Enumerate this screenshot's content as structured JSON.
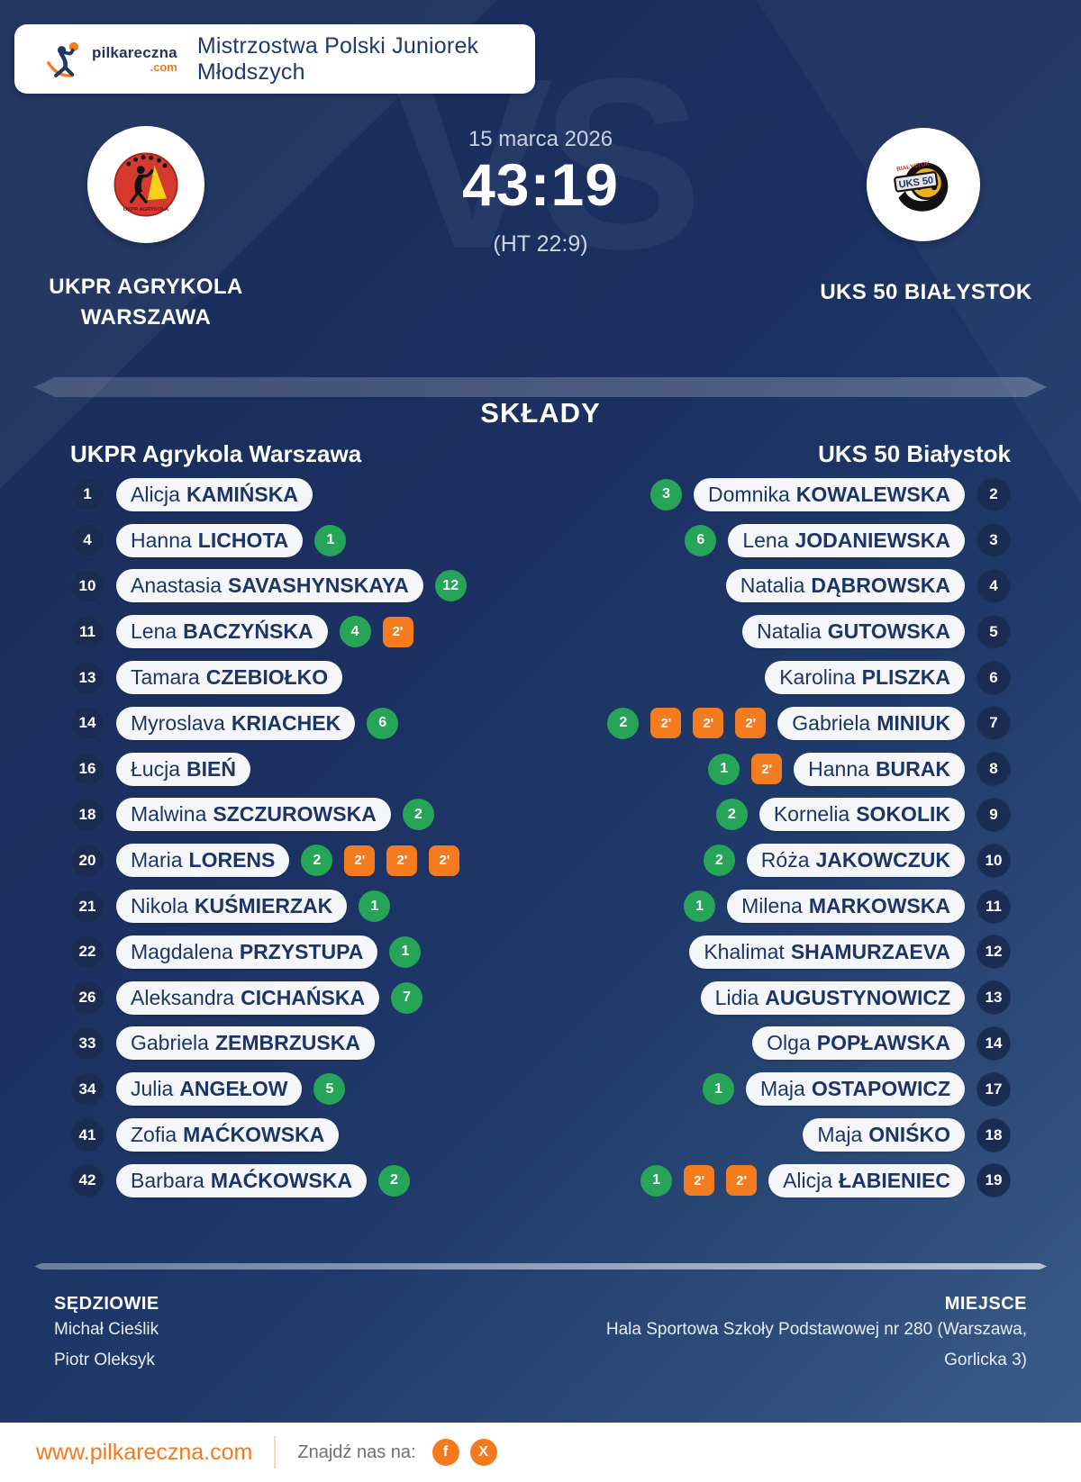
{
  "header": {
    "brand_name": "pilkareczna",
    "brand_tld": ".com",
    "title": "Mistrzostwa Polski Juniorek Młodszych"
  },
  "match": {
    "date": "15 marca 2026",
    "score": "43:19",
    "halftime": "(HT 22:9)",
    "watermark": "VS",
    "home_name_line1": "UKPR AGRYKOLA",
    "home_name_line2": "WARSZAWA",
    "away_name": "UKS 50 BIAŁYSTOK"
  },
  "lineups": {
    "section_title": "SKŁADY",
    "home_header": "UKPR Agrykola Warszawa",
    "away_header": "UKS 50 Białystok",
    "suspension_label": "2'",
    "home_players": [
      {
        "number": "1",
        "first": "Alicja",
        "last": "KAMIŃSKA",
        "goals": 0,
        "suspensions": 0
      },
      {
        "number": "4",
        "first": "Hanna",
        "last": "LICHOTA",
        "goals": 1,
        "suspensions": 0
      },
      {
        "number": "10",
        "first": "Anastasia",
        "last": "SAVASHYNSKAYA",
        "goals": 12,
        "suspensions": 0
      },
      {
        "number": "11",
        "first": "Lena",
        "last": "BACZYŃSKA",
        "goals": 4,
        "suspensions": 1
      },
      {
        "number": "13",
        "first": "Tamara",
        "last": "CZEBIOŁKO",
        "goals": 0,
        "suspensions": 0
      },
      {
        "number": "14",
        "first": "Myroslava",
        "last": "KRIACHEK",
        "goals": 6,
        "suspensions": 0
      },
      {
        "number": "16",
        "first": "Łucja",
        "last": "BIEŃ",
        "goals": 0,
        "suspensions": 0
      },
      {
        "number": "18",
        "first": "Malwina",
        "last": "SZCZUROWSKA",
        "goals": 2,
        "suspensions": 0
      },
      {
        "number": "20",
        "first": "Maria",
        "last": "LORENS",
        "goals": 2,
        "suspensions": 3
      },
      {
        "number": "21",
        "first": "Nikola",
        "last": "KUŚMIERZAK",
        "goals": 1,
        "suspensions": 0
      },
      {
        "number": "22",
        "first": "Magdalena",
        "last": "PRZYSTUPA",
        "goals": 1,
        "suspensions": 0
      },
      {
        "number": "26",
        "first": "Aleksandra",
        "last": "CICHAŃSKA",
        "goals": 7,
        "suspensions": 0
      },
      {
        "number": "33",
        "first": "Gabriela",
        "last": "ZEMBRZUSKA",
        "goals": 0,
        "suspensions": 0
      },
      {
        "number": "34",
        "first": "Julia",
        "last": "ANGEŁOW",
        "goals": 5,
        "suspensions": 0
      },
      {
        "number": "41",
        "first": "Zofia",
        "last": "MAĆKOWSKA",
        "goals": 0,
        "suspensions": 0
      },
      {
        "number": "42",
        "first": "Barbara",
        "last": "MAĆKOWSKA",
        "goals": 2,
        "suspensions": 0
      }
    ],
    "away_players": [
      {
        "number": "2",
        "first": "Domnika",
        "last": "KOWALEWSKA",
        "goals": 3,
        "suspensions": 0
      },
      {
        "number": "3",
        "first": "Lena",
        "last": "JODANIEWSKA",
        "goals": 6,
        "suspensions": 0
      },
      {
        "number": "4",
        "first": "Natalia",
        "last": "DĄBROWSKA",
        "goals": 0,
        "suspensions": 0
      },
      {
        "number": "5",
        "first": "Natalia",
        "last": "GUTOWSKA",
        "goals": 0,
        "suspensions": 0
      },
      {
        "number": "6",
        "first": "Karolina",
        "last": "PLISZKA",
        "goals": 0,
        "suspensions": 0
      },
      {
        "number": "7",
        "first": "Gabriela",
        "last": "MINIUK",
        "goals": 2,
        "suspensions": 3
      },
      {
        "number": "8",
        "first": "Hanna",
        "last": "BURAK",
        "goals": 1,
        "suspensions": 1
      },
      {
        "number": "9",
        "first": "Kornelia",
        "last": "SOKOLIK",
        "goals": 2,
        "suspensions": 0
      },
      {
        "number": "10",
        "first": "Róża",
        "last": "JAKOWCZUK",
        "goals": 2,
        "suspensions": 0
      },
      {
        "number": "11",
        "first": "Milena",
        "last": "MARKOWSKA",
        "goals": 1,
        "suspensions": 0
      },
      {
        "number": "12",
        "first": "Khalimat",
        "last": "SHAMURZAEVA",
        "goals": 0,
        "suspensions": 0
      },
      {
        "number": "13",
        "first": "Lidia",
        "last": "AUGUSTYNOWICZ",
        "goals": 0,
        "suspensions": 0
      },
      {
        "number": "14",
        "first": "Olga",
        "last": "POPŁAWSKA",
        "goals": 0,
        "suspensions": 0
      },
      {
        "number": "17",
        "first": "Maja",
        "last": "OSTAPOWICZ",
        "goals": 1,
        "suspensions": 0
      },
      {
        "number": "18",
        "first": "Maja",
        "last": "ONIŚKO",
        "goals": 0,
        "suspensions": 0
      },
      {
        "number": "19",
        "first": "Alicja",
        "last": "ŁABIENIEC",
        "goals": 1,
        "suspensions": 2
      }
    ]
  },
  "officials": {
    "title": "SĘDZIOWIE",
    "names": [
      "Michał Cieślik",
      "Piotr Oleksyk"
    ]
  },
  "venue": {
    "title": "MIEJSCE",
    "line1": "Hala Sportowa Szkoły Podstawowej nr 280 (Warszawa,",
    "line2": "Gorlicka 3)"
  },
  "footer": {
    "website": "www.pilkareczna.com",
    "find_us": "Znajdź nas na:",
    "social": [
      {
        "name": "facebook",
        "glyph": "f"
      },
      {
        "name": "x",
        "glyph": "X"
      }
    ]
  },
  "colors": {
    "background_navy": "#1c3162",
    "text_navy": "#1c3566",
    "goal_green": "#26a558",
    "suspension_orange": "#f57c1e",
    "accent_orange": "#f5791d"
  }
}
